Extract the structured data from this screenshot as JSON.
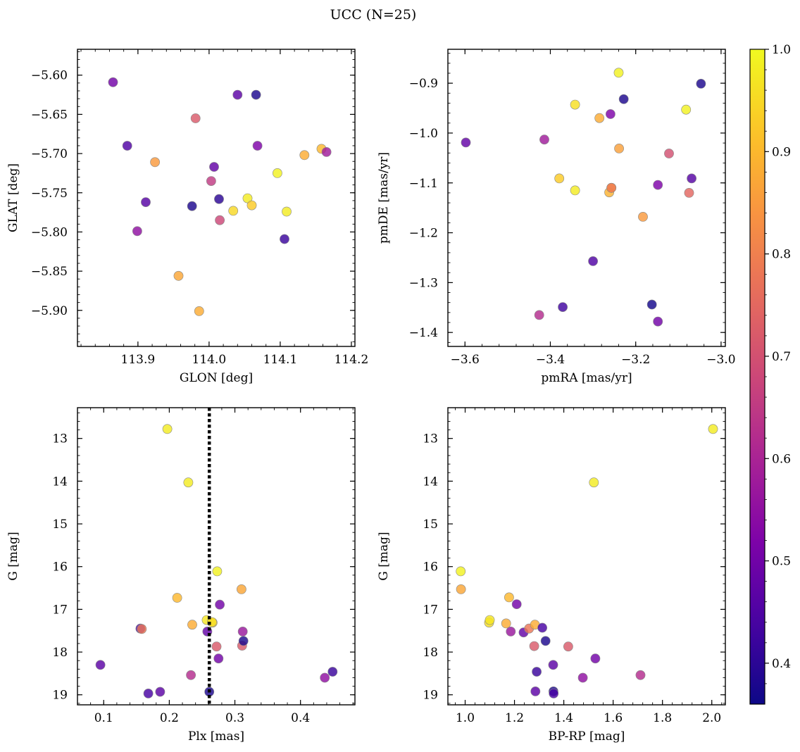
{
  "title": "UCC (N=25)",
  "colorbar": {
    "ticks": [
      "0.4",
      "0.5",
      "0.6",
      "0.7",
      "0.8",
      "0.9",
      "1.0"
    ],
    "tick_values": [
      0.4,
      0.5,
      0.6,
      0.7,
      0.8,
      0.9,
      1.0
    ],
    "range": [
      0.36,
      1.0
    ],
    "colormap": "plasma"
  },
  "chart_data": [
    {
      "type": "scatter",
      "xlabel": "GLON [deg]",
      "ylabel": "GLAT [deg]",
      "xlim": [
        113.815,
        114.205
      ],
      "ylim": [
        -5.946,
        -5.567
      ],
      "xticks": [
        113.9,
        114.0,
        114.1,
        114.2
      ],
      "xtick_labels": [
        "113.9",
        "114.0",
        "114.1",
        "114.2"
      ],
      "yticks": [
        -5.6,
        -5.65,
        -5.7,
        -5.75,
        -5.8,
        -5.85,
        -5.9
      ],
      "ytick_labels": [
        "−5.60",
        "−5.65",
        "−5.70",
        "−5.75",
        "−5.80",
        "−5.85",
        "−5.90"
      ],
      "inverted_y": false,
      "vline": null,
      "points": [
        {
          "x": 113.865,
          "y": -5.609,
          "c": 0.5
        },
        {
          "x": 113.885,
          "y": -5.69,
          "c": 0.45
        },
        {
          "x": 113.911,
          "y": -5.762,
          "c": 0.46
        },
        {
          "x": 113.899,
          "y": -5.799,
          "c": 0.55
        },
        {
          "x": 113.924,
          "y": -5.711,
          "c": 0.85
        },
        {
          "x": 113.957,
          "y": -5.856,
          "c": 0.87
        },
        {
          "x": 113.976,
          "y": -5.767,
          "c": 0.38
        },
        {
          "x": 113.981,
          "y": -5.655,
          "c": 0.72
        },
        {
          "x": 113.986,
          "y": -5.901,
          "c": 0.88
        },
        {
          "x": 114.003,
          "y": -5.735,
          "c": 0.65
        },
        {
          "x": 114.007,
          "y": -5.717,
          "c": 0.48
        },
        {
          "x": 114.014,
          "y": -5.758,
          "c": 0.4
        },
        {
          "x": 114.015,
          "y": -5.785,
          "c": 0.68
        },
        {
          "x": 114.034,
          "y": -5.773,
          "c": 0.95
        },
        {
          "x": 114.04,
          "y": -5.625,
          "c": 0.47
        },
        {
          "x": 114.054,
          "y": -5.757,
          "c": 0.98
        },
        {
          "x": 114.06,
          "y": -5.766,
          "c": 0.93
        },
        {
          "x": 114.066,
          "y": -5.625,
          "c": 0.38
        },
        {
          "x": 114.068,
          "y": -5.69,
          "c": 0.52
        },
        {
          "x": 114.096,
          "y": -5.725,
          "c": 0.99
        },
        {
          "x": 114.106,
          "y": -5.809,
          "c": 0.42
        },
        {
          "x": 114.109,
          "y": -5.774,
          "c": 0.98
        },
        {
          "x": 114.134,
          "y": -5.702,
          "c": 0.88
        },
        {
          "x": 114.158,
          "y": -5.694,
          "c": 0.9
        },
        {
          "x": 114.165,
          "y": -5.698,
          "c": 0.58
        }
      ]
    },
    {
      "type": "scatter",
      "xlabel": "pmRA [mas/yr]",
      "ylabel": "pmDE [mas/yr]",
      "xlim": [
        -3.64,
        -2.99
      ],
      "ylim": [
        -1.428,
        -0.832
      ],
      "xticks": [
        -3.6,
        -3.4,
        -3.2,
        -3.0
      ],
      "xtick_labels": [
        "−3.6",
        "−3.4",
        "−3.2",
        "−3.0"
      ],
      "yticks": [
        -0.9,
        -1.0,
        -1.1,
        -1.2,
        -1.3,
        -1.4
      ],
      "ytick_labels": [
        "−0.9",
        "−1.0",
        "−1.1",
        "−1.2",
        "−1.3",
        "−1.4"
      ],
      "inverted_y": false,
      "vline": null,
      "points": [
        {
          "x": -3.598,
          "y": -1.019,
          "c": 0.48
        },
        {
          "x": -3.426,
          "y": -1.365,
          "c": 0.62
        },
        {
          "x": -3.414,
          "y": -1.013,
          "c": 0.58
        },
        {
          "x": -3.379,
          "y": -1.091,
          "c": 0.93
        },
        {
          "x": -3.371,
          "y": -1.349,
          "c": 0.43
        },
        {
          "x": -3.342,
          "y": -0.943,
          "c": 0.96
        },
        {
          "x": -3.342,
          "y": -1.115,
          "c": 0.98
        },
        {
          "x": -3.3,
          "y": -1.257,
          "c": 0.45
        },
        {
          "x": -3.285,
          "y": -0.97,
          "c": 0.88
        },
        {
          "x": -3.262,
          "y": -1.119,
          "c": 0.89
        },
        {
          "x": -3.259,
          "y": -0.962,
          "c": 0.52
        },
        {
          "x": -3.257,
          "y": -1.11,
          "c": 0.8
        },
        {
          "x": -3.24,
          "y": -0.879,
          "c": 0.99
        },
        {
          "x": -3.239,
          "y": -1.031,
          "c": 0.86
        },
        {
          "x": -3.228,
          "y": -0.932,
          "c": 0.38
        },
        {
          "x": -3.183,
          "y": -1.168,
          "c": 0.85
        },
        {
          "x": -3.162,
          "y": -1.344,
          "c": 0.37
        },
        {
          "x": -3.148,
          "y": -1.104,
          "c": 0.52
        },
        {
          "x": -3.148,
          "y": -1.378,
          "c": 0.5
        },
        {
          "x": -3.122,
          "y": -1.041,
          "c": 0.7
        },
        {
          "x": -3.082,
          "y": -0.953,
          "c": 0.99
        },
        {
          "x": -3.075,
          "y": -1.12,
          "c": 0.75
        },
        {
          "x": -3.069,
          "y": -1.091,
          "c": 0.46
        },
        {
          "x": -3.047,
          "y": -0.901,
          "c": 0.38
        },
        {
          "x": -3.257,
          "y": -1.11,
          "c": 0.8
        }
      ]
    },
    {
      "type": "scatter",
      "xlabel": "Plx [mas]",
      "ylabel": "G [mag]",
      "xlim": [
        0.06,
        0.483
      ],
      "ylim": [
        19.235,
        12.28
      ],
      "xticks": [
        0.1,
        0.2,
        0.3,
        0.4
      ],
      "xtick_labels": [
        "0.1",
        "0.2",
        "0.3",
        "0.4"
      ],
      "yticks": [
        13,
        14,
        15,
        16,
        17,
        18,
        19
      ],
      "ytick_labels": [
        "13",
        "14",
        "15",
        "16",
        "17",
        "18",
        "19"
      ],
      "inverted_y": true,
      "vline": 0.261,
      "points": [
        {
          "x": 0.095,
          "y": 18.3,
          "c": 0.47
        },
        {
          "x": 0.156,
          "y": 17.45,
          "c": 0.44
        },
        {
          "x": 0.158,
          "y": 17.46,
          "c": 0.78
        },
        {
          "x": 0.168,
          "y": 18.97,
          "c": 0.44
        },
        {
          "x": 0.186,
          "y": 18.93,
          "c": 0.47
        },
        {
          "x": 0.197,
          "y": 12.78,
          "c": 0.98
        },
        {
          "x": 0.212,
          "y": 16.73,
          "c": 0.9
        },
        {
          "x": 0.229,
          "y": 14.03,
          "c": 0.98
        },
        {
          "x": 0.233,
          "y": 18.54,
          "c": 0.62
        },
        {
          "x": 0.235,
          "y": 17.36,
          "c": 0.88
        },
        {
          "x": 0.257,
          "y": 17.25,
          "c": 0.97
        },
        {
          "x": 0.258,
          "y": 17.52,
          "c": 0.48
        },
        {
          "x": 0.261,
          "y": 18.93,
          "c": 0.38
        },
        {
          "x": 0.266,
          "y": 17.31,
          "c": 0.95
        },
        {
          "x": 0.272,
          "y": 17.87,
          "c": 0.72
        },
        {
          "x": 0.273,
          "y": 16.11,
          "c": 0.99
        },
        {
          "x": 0.275,
          "y": 18.15,
          "c": 0.5
        },
        {
          "x": 0.277,
          "y": 16.89,
          "c": 0.5
        },
        {
          "x": 0.31,
          "y": 16.53,
          "c": 0.87
        },
        {
          "x": 0.311,
          "y": 17.85,
          "c": 0.72
        },
        {
          "x": 0.312,
          "y": 17.52,
          "c": 0.57
        },
        {
          "x": 0.313,
          "y": 17.74,
          "c": 0.38
        },
        {
          "x": 0.437,
          "y": 18.6,
          "c": 0.55
        },
        {
          "x": 0.449,
          "y": 18.46,
          "c": 0.42
        },
        {
          "x": 0.265,
          "y": 17.3,
          "c": 0.96
        }
      ]
    },
    {
      "type": "scatter",
      "xlabel": "BP-RP [mag]",
      "ylabel": "G [mag]",
      "xlim": [
        0.93,
        2.055
      ],
      "ylim": [
        19.235,
        12.28
      ],
      "xticks": [
        1.0,
        1.2,
        1.4,
        1.6,
        1.8,
        2.0
      ],
      "xtick_labels": [
        "1.0",
        "1.2",
        "1.4",
        "1.6",
        "1.8",
        "2.0"
      ],
      "yticks": [
        13,
        14,
        15,
        16,
        17,
        18,
        19
      ],
      "ytick_labels": [
        "13",
        "14",
        "15",
        "16",
        "17",
        "18",
        "19"
      ],
      "inverted_y": true,
      "vline": null,
      "points": [
        {
          "x": 0.982,
          "y": 16.11,
          "c": 0.99
        },
        {
          "x": 0.983,
          "y": 16.53,
          "c": 0.87
        },
        {
          "x": 1.097,
          "y": 17.31,
          "c": 0.96
        },
        {
          "x": 1.1,
          "y": 17.25,
          "c": 0.97
        },
        {
          "x": 1.166,
          "y": 17.33,
          "c": 0.88
        },
        {
          "x": 1.178,
          "y": 16.72,
          "c": 0.9
        },
        {
          "x": 1.185,
          "y": 17.52,
          "c": 0.57
        },
        {
          "x": 1.209,
          "y": 16.88,
          "c": 0.5
        },
        {
          "x": 1.237,
          "y": 17.54,
          "c": 0.48
        },
        {
          "x": 1.259,
          "y": 17.45,
          "c": 0.78
        },
        {
          "x": 1.28,
          "y": 17.86,
          "c": 0.72
        },
        {
          "x": 1.283,
          "y": 17.36,
          "c": 0.88
        },
        {
          "x": 1.285,
          "y": 18.92,
          "c": 0.47
        },
        {
          "x": 1.29,
          "y": 18.46,
          "c": 0.42
        },
        {
          "x": 1.313,
          "y": 17.43,
          "c": 0.44
        },
        {
          "x": 1.326,
          "y": 17.74,
          "c": 0.38
        },
        {
          "x": 1.357,
          "y": 18.3,
          "c": 0.47
        },
        {
          "x": 1.358,
          "y": 18.92,
          "c": 0.38
        },
        {
          "x": 1.359,
          "y": 18.97,
          "c": 0.44
        },
        {
          "x": 1.418,
          "y": 17.87,
          "c": 0.72
        },
        {
          "x": 1.477,
          "y": 18.6,
          "c": 0.55
        },
        {
          "x": 1.522,
          "y": 14.03,
          "c": 0.98
        },
        {
          "x": 1.528,
          "y": 18.15,
          "c": 0.5
        },
        {
          "x": 1.711,
          "y": 18.54,
          "c": 0.62
        },
        {
          "x": 2.005,
          "y": 12.78,
          "c": 0.98
        }
      ]
    }
  ]
}
